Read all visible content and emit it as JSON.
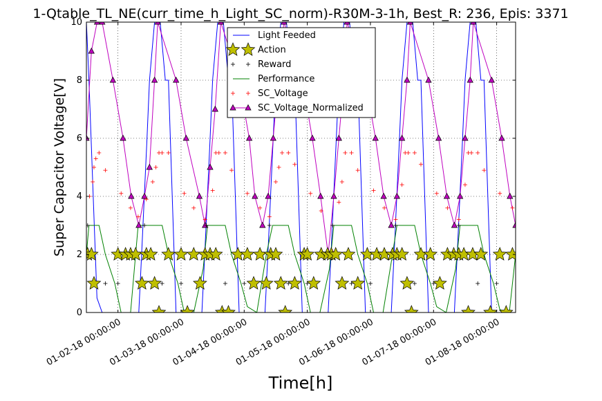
{
  "chart_data": {
    "type": "line",
    "title": "1-Qtable_TL_NE(curr_time_h_Light_SC_norm)-R30M-3-1h, Best_R: 236, Epis: 3371",
    "xlabel": "Time[h]",
    "ylabel": "Super Capacitor Voltage[V]",
    "ylim": [
      0,
      10
    ],
    "xlim": [
      0,
      6.8
    ],
    "grid": true,
    "legend_position": "top-center",
    "y_ticks": [
      0,
      2,
      4,
      6,
      8,
      10
    ],
    "x_ticks": [
      {
        "pos": 0.5,
        "label": "01-02-18 00:00:00"
      },
      {
        "pos": 1.5,
        "label": "01-03-18 00:00:00"
      },
      {
        "pos": 2.5,
        "label": "01-04-18 00:00:00"
      },
      {
        "pos": 3.5,
        "label": "01-05-18 00:00:00"
      },
      {
        "pos": 4.5,
        "label": "01-06-18 00:00:00"
      },
      {
        "pos": 5.5,
        "label": "01-07-18 00:00:00"
      },
      {
        "pos": 6.5,
        "label": "01-08-18 00:00:00"
      }
    ],
    "series": [
      {
        "name": "Light Feeded",
        "style": "line",
        "color": "#0000ff",
        "x": [
          0,
          0.04,
          0.125,
          0.167,
          0.25,
          0.3,
          0.42,
          0.83,
          0.875,
          0.96,
          1.0,
          1.08,
          1.17,
          1.25,
          1.3,
          1.42,
          1.83,
          1.875,
          1.96,
          2.0,
          2.08,
          2.17,
          2.25,
          2.3,
          2.42,
          2.83,
          2.875,
          2.96,
          3.0,
          3.08,
          3.17,
          3.25,
          3.3,
          3.42,
          3.83,
          3.875,
          3.96,
          4.0,
          4.08,
          4.17,
          4.25,
          4.3,
          4.42,
          4.83,
          4.875,
          4.96,
          5.0,
          5.08,
          5.17,
          5.25,
          5.3,
          5.42,
          5.83,
          5.875,
          5.96,
          6.0,
          6.08,
          6.17,
          6.25,
          6.3,
          6.42,
          6.83,
          6.8
        ],
        "y": [
          10,
          8,
          3,
          0.5,
          0,
          0,
          0,
          0,
          2,
          6,
          8,
          10,
          10,
          8,
          8,
          0,
          0,
          2,
          6,
          8,
          10,
          10,
          8,
          8,
          0,
          0,
          2,
          6,
          8,
          10,
          10,
          8,
          8,
          0,
          0,
          2,
          6,
          8,
          10,
          10,
          8,
          8,
          0,
          0,
          2,
          6,
          8,
          10,
          10,
          8,
          8,
          0,
          0,
          2,
          6,
          8,
          10,
          10,
          8,
          8,
          0,
          0,
          2
        ]
      },
      {
        "name": "Performance",
        "style": "line",
        "color": "#008000",
        "x": [
          0,
          0.04,
          0.2,
          0.3,
          0.45,
          0.55,
          0.7,
          0.82,
          0.9,
          1.0,
          1.2,
          1.3,
          1.45,
          1.55,
          1.7,
          1.85,
          1.92,
          2.0,
          2.2,
          2.3,
          2.45,
          2.55,
          2.7,
          2.85,
          2.95,
          3.0,
          3.2,
          3.3,
          3.45,
          3.55,
          3.7,
          3.85,
          3.92,
          4.0,
          4.2,
          4.3,
          4.45,
          4.55,
          4.7,
          4.85,
          4.92,
          5.0,
          5.2,
          5.3,
          5.45,
          5.55,
          5.7,
          5.85,
          5.92,
          6.0,
          6.2,
          6.3,
          6.45,
          6.55,
          6.7,
          6.8
        ],
        "y": [
          2,
          3,
          3,
          2,
          1,
          0,
          0,
          3,
          3,
          3,
          3,
          2,
          1,
          0,
          0,
          1.5,
          3,
          3,
          3,
          2,
          1,
          0.2,
          0,
          2,
          3,
          3,
          3,
          2,
          1,
          0,
          0,
          1.5,
          3,
          3,
          3,
          2,
          1,
          0,
          0,
          2,
          3,
          3,
          3,
          2,
          1,
          0.2,
          0,
          1.5,
          3,
          3,
          3,
          2,
          1,
          0.1,
          0,
          2
        ]
      },
      {
        "name": "SC_Voltage_Normalized",
        "style": "line-marker",
        "color": "#bf00bf",
        "marker": "triangle",
        "x": [
          0,
          0.08,
          0.17,
          0.25,
          0.42,
          0.58,
          0.71,
          0.83,
          0.92,
          1.0,
          1.08,
          1.13,
          1.42,
          1.58,
          1.79,
          1.88,
          1.96,
          2.04,
          2.13,
          2.42,
          2.58,
          2.67,
          2.79,
          2.88,
          2.96,
          3.04,
          3.13,
          3.42,
          3.58,
          3.71,
          3.83,
          3.92,
          4.0,
          4.08,
          4.13,
          4.42,
          4.58,
          4.71,
          4.83,
          4.92,
          5.0,
          5.08,
          5.13,
          5.42,
          5.58,
          5.71,
          5.83,
          5.92,
          6.0,
          6.08,
          6.13,
          6.42,
          6.58,
          6.71,
          6.8
        ],
        "y": [
          6,
          9,
          10,
          10,
          8,
          6,
          4,
          3,
          4,
          5,
          8,
          10,
          8,
          6,
          4,
          3,
          5,
          7,
          10,
          8,
          6,
          4,
          3,
          4,
          6,
          8,
          10,
          8,
          6,
          4,
          2,
          4,
          6,
          8,
          10,
          8,
          6,
          4,
          3,
          4,
          6,
          8,
          10,
          8,
          6,
          4,
          3,
          4,
          6,
          8,
          10,
          8,
          6,
          4,
          3
        ]
      },
      {
        "name": "SC_Voltage",
        "style": "plus",
        "color": "#ff0000",
        "x": [
          0.05,
          0.1,
          0.12,
          0.15,
          0.2,
          0.3,
          0.55,
          0.7,
          0.82,
          0.95,
          1.05,
          1.1,
          1.15,
          1.2,
          1.3,
          1.55,
          1.7,
          1.88,
          2.0,
          2.05,
          2.1,
          2.2,
          2.3,
          2.55,
          2.75,
          2.9,
          3.0,
          3.05,
          3.1,
          3.2,
          3.3,
          3.55,
          3.72,
          3.9,
          4.0,
          4.05,
          4.1,
          4.2,
          4.3,
          4.55,
          4.72,
          4.9,
          5.0,
          5.05,
          5.1,
          5.2,
          5.3,
          5.55,
          5.72,
          5.9,
          6.0,
          6.05,
          6.1,
          6.2,
          6.3,
          6.55,
          6.75
        ],
        "y": [
          4,
          4.5,
          5,
          5.3,
          5.5,
          4.9,
          4.1,
          3.6,
          3.3,
          3.9,
          4.5,
          5,
          5.5,
          5.5,
          5.5,
          4.1,
          3.6,
          3.2,
          4.2,
          5.5,
          5.5,
          5.5,
          4.9,
          4.1,
          3.6,
          3.3,
          4.5,
          5,
          5.5,
          5.5,
          5.1,
          4.1,
          3.5,
          2.1,
          3.8,
          4.5,
          5.5,
          5.5,
          4.9,
          4.2,
          3.6,
          3.2,
          4.4,
          5.5,
          5.5,
          5.5,
          5.1,
          4.1,
          3.6,
          3.2,
          4.4,
          5.5,
          5.5,
          5.5,
          4.9,
          4.1,
          3.6
        ]
      },
      {
        "name": "Action",
        "style": "star",
        "color": "#bfbf00",
        "x": [
          0.02,
          0.08,
          0.12,
          0.5,
          0.62,
          0.7,
          0.78,
          0.88,
          0.95,
          1.02,
          1.08,
          1.15,
          1.3,
          1.5,
          1.6,
          1.7,
          1.8,
          1.88,
          1.96,
          2.05,
          2.15,
          2.25,
          2.4,
          2.55,
          2.65,
          2.75,
          2.85,
          2.92,
          3.0,
          3.08,
          3.15,
          3.3,
          3.45,
          3.5,
          3.6,
          3.72,
          3.82,
          3.88,
          3.95,
          4.05,
          4.15,
          4.3,
          4.45,
          4.6,
          4.72,
          4.85,
          4.92,
          5.0,
          5.08,
          5.15,
          5.3,
          5.45,
          5.6,
          5.72,
          5.82,
          5.9,
          5.98,
          6.05,
          6.12,
          6.25,
          6.4,
          6.55,
          6.65,
          6.75
        ],
        "y": [
          2,
          2,
          1,
          2,
          2,
          2,
          2,
          1,
          2,
          2,
          1,
          0,
          2,
          2,
          0,
          2,
          1,
          2,
          2,
          2,
          0,
          0,
          2,
          2,
          1,
          2,
          1,
          2,
          2,
          1,
          0,
          1,
          2,
          2,
          1,
          2,
          2,
          2,
          2,
          1,
          2,
          1,
          2,
          2,
          2,
          2,
          2,
          2,
          1,
          0,
          2,
          2,
          1,
          2,
          2,
          2,
          2,
          0,
          2,
          2,
          0,
          2,
          0,
          2
        ]
      },
      {
        "name": "Reward",
        "style": "plus",
        "color": "#000000",
        "x": [
          0.02,
          0.3,
          0.5,
          0.92,
          1.2,
          1.5,
          1.9,
          2.2,
          2.5,
          2.9,
          3.2,
          3.5,
          3.9,
          4.2,
          4.5,
          4.9,
          5.2,
          5.5,
          5.9,
          6.2,
          6.5
        ],
        "y": [
          3,
          1,
          1,
          3,
          1,
          1,
          3,
          1,
          1,
          3,
          1,
          1,
          3,
          1,
          1,
          3,
          1,
          1,
          3,
          1,
          1
        ]
      }
    ],
    "legend_order": [
      "Light Feeded",
      "Action",
      "Reward",
      "Performance",
      "SC_Voltage",
      "SC_Voltage_Normalized"
    ]
  }
}
